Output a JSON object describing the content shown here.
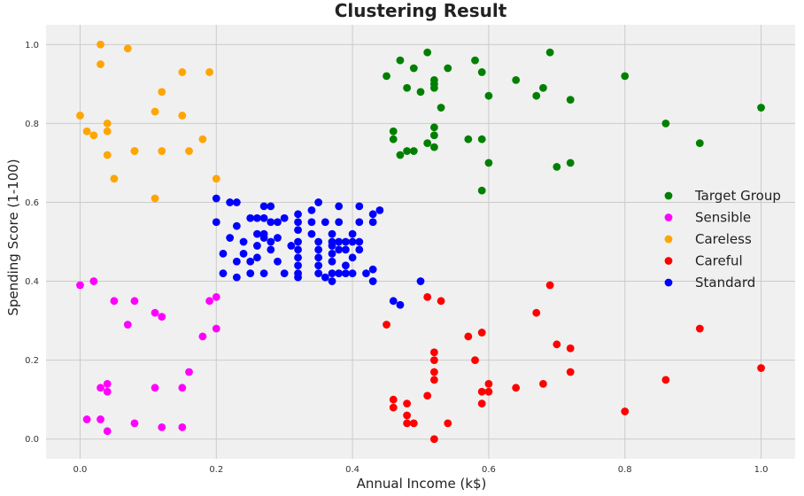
{
  "chart_data": {
    "type": "scatter",
    "title": "Clustering Result",
    "xlabel": "Annual Income (k$)",
    "ylabel": "Spending Score (1-100)",
    "xlim": [
      -0.05,
      1.05
    ],
    "ylim": [
      -0.05,
      1.05
    ],
    "x_ticks": [
      0.0,
      0.2,
      0.4,
      0.6,
      0.8,
      1.0
    ],
    "y_ticks": [
      0.0,
      0.2,
      0.4,
      0.6,
      0.8,
      1.0
    ],
    "x_tick_labels": [
      "0.0",
      "0.2",
      "0.4",
      "0.6",
      "0.8",
      "1.0"
    ],
    "y_tick_labels": [
      "0.0",
      "0.2",
      "0.4",
      "0.6",
      "0.8",
      "1.0"
    ],
    "grid": true,
    "legend_position": "right",
    "background": "#f0f0f0",
    "series": [
      {
        "name": "Target Group",
        "color": "#008000",
        "points": [
          [
            0.45,
            0.92
          ],
          [
            0.46,
            0.78
          ],
          [
            0.46,
            0.76
          ],
          [
            0.47,
            0.72
          ],
          [
            0.47,
            0.96
          ],
          [
            0.48,
            0.89
          ],
          [
            0.48,
            0.73
          ],
          [
            0.49,
            0.73
          ],
          [
            0.49,
            0.94
          ],
          [
            0.5,
            0.88
          ],
          [
            0.51,
            0.98
          ],
          [
            0.51,
            0.75
          ],
          [
            0.52,
            0.89
          ],
          [
            0.52,
            0.9
          ],
          [
            0.52,
            0.91
          ],
          [
            0.52,
            0.79
          ],
          [
            0.52,
            0.77
          ],
          [
            0.52,
            0.74
          ],
          [
            0.53,
            0.84
          ],
          [
            0.54,
            0.94
          ],
          [
            0.57,
            0.76
          ],
          [
            0.58,
            0.96
          ],
          [
            0.59,
            0.93
          ],
          [
            0.59,
            0.76
          ],
          [
            0.59,
            0.63
          ],
          [
            0.6,
            0.87
          ],
          [
            0.6,
            0.7
          ],
          [
            0.64,
            0.91
          ],
          [
            0.67,
            0.87
          ],
          [
            0.68,
            0.89
          ],
          [
            0.69,
            0.98
          ],
          [
            0.7,
            0.69
          ],
          [
            0.72,
            0.86
          ],
          [
            0.72,
            0.7
          ],
          [
            0.8,
            0.92
          ],
          [
            0.86,
            0.8
          ],
          [
            0.91,
            0.75
          ],
          [
            1.0,
            0.84
          ]
        ]
      },
      {
        "name": "Sensible",
        "color": "#ff00ff",
        "points": [
          [
            0.0,
            0.39
          ],
          [
            0.01,
            0.05
          ],
          [
            0.02,
            0.4
          ],
          [
            0.03,
            0.05
          ],
          [
            0.03,
            0.13
          ],
          [
            0.04,
            0.02
          ],
          [
            0.04,
            0.14
          ],
          [
            0.04,
            0.12
          ],
          [
            0.05,
            0.35
          ],
          [
            0.07,
            0.29
          ],
          [
            0.08,
            0.35
          ],
          [
            0.08,
            0.04
          ],
          [
            0.11,
            0.32
          ],
          [
            0.11,
            0.13
          ],
          [
            0.12,
            0.31
          ],
          [
            0.12,
            0.03
          ],
          [
            0.15,
            0.13
          ],
          [
            0.15,
            0.03
          ],
          [
            0.16,
            0.17
          ],
          [
            0.18,
            0.26
          ],
          [
            0.19,
            0.35
          ],
          [
            0.2,
            0.36
          ],
          [
            0.2,
            0.28
          ]
        ]
      },
      {
        "name": "Careless",
        "color": "#ffa500",
        "points": [
          [
            0.0,
            0.82
          ],
          [
            0.01,
            0.78
          ],
          [
            0.02,
            0.77
          ],
          [
            0.03,
            0.95
          ],
          [
            0.03,
            1.0
          ],
          [
            0.04,
            0.72
          ],
          [
            0.04,
            0.8
          ],
          [
            0.04,
            0.78
          ],
          [
            0.05,
            0.66
          ],
          [
            0.07,
            0.99
          ],
          [
            0.08,
            0.73
          ],
          [
            0.08,
            0.73
          ],
          [
            0.11,
            0.83
          ],
          [
            0.11,
            0.61
          ],
          [
            0.12,
            0.88
          ],
          [
            0.12,
            0.73
          ],
          [
            0.15,
            0.93
          ],
          [
            0.15,
            0.82
          ],
          [
            0.16,
            0.73
          ],
          [
            0.18,
            0.76
          ],
          [
            0.19,
            0.93
          ],
          [
            0.2,
            0.66
          ]
        ]
      },
      {
        "name": "Careful",
        "color": "#ff0000",
        "points": [
          [
            0.45,
            0.29
          ],
          [
            0.46,
            0.1
          ],
          [
            0.46,
            0.08
          ],
          [
            0.48,
            0.06
          ],
          [
            0.48,
            0.04
          ],
          [
            0.48,
            0.09
          ],
          [
            0.49,
            0.04
          ],
          [
            0.51,
            0.11
          ],
          [
            0.51,
            0.36
          ],
          [
            0.52,
            0.22
          ],
          [
            0.52,
            0.2
          ],
          [
            0.52,
            0.17
          ],
          [
            0.52,
            0.15
          ],
          [
            0.52,
            0.0
          ],
          [
            0.53,
            0.35
          ],
          [
            0.54,
            0.04
          ],
          [
            0.57,
            0.26
          ],
          [
            0.58,
            0.2
          ],
          [
            0.59,
            0.27
          ],
          [
            0.59,
            0.12
          ],
          [
            0.59,
            0.09
          ],
          [
            0.6,
            0.14
          ],
          [
            0.6,
            0.12
          ],
          [
            0.64,
            0.13
          ],
          [
            0.67,
            0.32
          ],
          [
            0.68,
            0.14
          ],
          [
            0.69,
            0.39
          ],
          [
            0.7,
            0.24
          ],
          [
            0.72,
            0.23
          ],
          [
            0.72,
            0.17
          ],
          [
            0.8,
            0.07
          ],
          [
            0.86,
            0.15
          ],
          [
            0.91,
            0.28
          ],
          [
            1.0,
            0.18
          ]
        ]
      },
      {
        "name": "Standard",
        "color": "#0000ff",
        "points": [
          [
            0.2,
            0.61
          ],
          [
            0.2,
            0.55
          ],
          [
            0.21,
            0.47
          ],
          [
            0.21,
            0.42
          ],
          [
            0.22,
            0.51
          ],
          [
            0.22,
            0.6
          ],
          [
            0.23,
            0.6
          ],
          [
            0.23,
            0.54
          ],
          [
            0.23,
            0.45
          ],
          [
            0.23,
            0.41
          ],
          [
            0.24,
            0.5
          ],
          [
            0.24,
            0.47
          ],
          [
            0.25,
            0.56
          ],
          [
            0.25,
            0.45
          ],
          [
            0.25,
            0.42
          ],
          [
            0.26,
            0.52
          ],
          [
            0.26,
            0.56
          ],
          [
            0.26,
            0.49
          ],
          [
            0.26,
            0.46
          ],
          [
            0.27,
            0.52
          ],
          [
            0.27,
            0.59
          ],
          [
            0.27,
            0.56
          ],
          [
            0.27,
            0.51
          ],
          [
            0.27,
            0.42
          ],
          [
            0.28,
            0.59
          ],
          [
            0.28,
            0.55
          ],
          [
            0.28,
            0.5
          ],
          [
            0.28,
            0.48
          ],
          [
            0.29,
            0.45
          ],
          [
            0.29,
            0.55
          ],
          [
            0.29,
            0.51
          ],
          [
            0.3,
            0.42
          ],
          [
            0.3,
            0.56
          ],
          [
            0.31,
            0.49
          ],
          [
            0.32,
            0.57
          ],
          [
            0.32,
            0.55
          ],
          [
            0.32,
            0.53
          ],
          [
            0.32,
            0.5
          ],
          [
            0.32,
            0.48
          ],
          [
            0.32,
            0.46
          ],
          [
            0.32,
            0.44
          ],
          [
            0.32,
            0.42
          ],
          [
            0.32,
            0.41
          ],
          [
            0.34,
            0.55
          ],
          [
            0.34,
            0.52
          ],
          [
            0.34,
            0.58
          ],
          [
            0.35,
            0.6
          ],
          [
            0.35,
            0.5
          ],
          [
            0.35,
            0.48
          ],
          [
            0.35,
            0.46
          ],
          [
            0.35,
            0.44
          ],
          [
            0.35,
            0.42
          ],
          [
            0.36,
            0.55
          ],
          [
            0.36,
            0.41
          ],
          [
            0.37,
            0.52
          ],
          [
            0.37,
            0.5
          ],
          [
            0.37,
            0.49
          ],
          [
            0.37,
            0.47
          ],
          [
            0.37,
            0.45
          ],
          [
            0.37,
            0.42
          ],
          [
            0.37,
            0.4
          ],
          [
            0.38,
            0.59
          ],
          [
            0.38,
            0.55
          ],
          [
            0.38,
            0.5
          ],
          [
            0.38,
            0.48
          ],
          [
            0.38,
            0.42
          ],
          [
            0.39,
            0.5
          ],
          [
            0.39,
            0.42
          ],
          [
            0.39,
            0.44
          ],
          [
            0.39,
            0.48
          ],
          [
            0.4,
            0.46
          ],
          [
            0.4,
            0.5
          ],
          [
            0.4,
            0.52
          ],
          [
            0.4,
            0.42
          ],
          [
            0.41,
            0.59
          ],
          [
            0.41,
            0.5
          ],
          [
            0.41,
            0.48
          ],
          [
            0.41,
            0.55
          ],
          [
            0.42,
            0.42
          ],
          [
            0.43,
            0.57
          ],
          [
            0.43,
            0.55
          ],
          [
            0.43,
            0.43
          ],
          [
            0.43,
            0.4
          ],
          [
            0.44,
            0.58
          ],
          [
            0.46,
            0.35
          ],
          [
            0.47,
            0.34
          ],
          [
            0.5,
            0.4
          ]
        ]
      }
    ]
  }
}
